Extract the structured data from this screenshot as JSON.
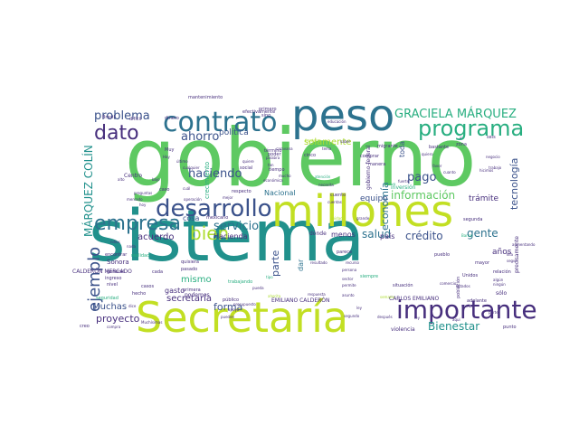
{
  "palette": {
    "background": "#ffffff",
    "dark_purple": "#472f7d",
    "blue": "#3b528b",
    "teal_blue": "#2c728e",
    "teal": "#21918c",
    "sea_green": "#28ae80",
    "green": "#5ec962",
    "light_green": "#addc30",
    "yellow_green": "#c2df23"
  },
  "words": [
    {
      "text": "gobierno",
      "size": 88,
      "rotate": 0,
      "color": "#5ec962"
    },
    {
      "text": "sistema",
      "size": 78,
      "rotate": 0,
      "color": "#21918c"
    },
    {
      "text": "Secretaría",
      "size": 46,
      "rotate": 0,
      "color": "#c2df23"
    },
    {
      "text": "peso",
      "size": 48,
      "rotate": 0,
      "color": "#2c728e"
    },
    {
      "text": "millones",
      "size": 48,
      "rotate": 0,
      "color": "#c2df23"
    },
    {
      "text": "contrato",
      "size": 30,
      "rotate": 0,
      "color": "#2c728e"
    },
    {
      "text": "desarrollo",
      "size": 26,
      "rotate": 0,
      "color": "#3b528b"
    },
    {
      "text": "importante",
      "size": 28,
      "rotate": 0,
      "color": "#472f7d"
    },
    {
      "text": "programa",
      "size": 24,
      "rotate": 0,
      "color": "#28ae80"
    },
    {
      "text": "empresa",
      "size": 22,
      "rotate": 0,
      "color": "#2c728e"
    },
    {
      "text": "dato",
      "size": 22,
      "rotate": 0,
      "color": "#472f7d"
    },
    {
      "text": "bien",
      "size": 20,
      "rotate": 0,
      "color": "#addc30"
    },
    {
      "text": "ejemplo",
      "size": 18,
      "rotate": 270,
      "color": "#3b528b"
    },
    {
      "text": "GRACIELA MÁRQUEZ",
      "size": 13,
      "rotate": 0,
      "color": "#28ae80"
    },
    {
      "text": "MÁRQUEZ COLÍN",
      "size": 12,
      "rotate": 270,
      "color": "#21918c"
    },
    {
      "text": "problema",
      "size": 13,
      "rotate": 0,
      "color": "#3b528b"
    },
    {
      "text": "ahorro",
      "size": 13,
      "rotate": 0,
      "color": "#3b528b"
    },
    {
      "text": "haciendo",
      "size": 13,
      "rotate": 0,
      "color": "#3b528b"
    },
    {
      "text": "servicio",
      "size": 13,
      "rotate": 0,
      "color": "#2c728e"
    },
    {
      "text": "pago",
      "size": 13,
      "rotate": 0,
      "color": "#3b528b"
    },
    {
      "text": "información",
      "size": 12,
      "rotate": 0,
      "color": "#5ec962"
    },
    {
      "text": "crédito",
      "size": 12,
      "rotate": 0,
      "color": "#3b528b"
    },
    {
      "text": "salud",
      "size": 12,
      "rotate": 0,
      "color": "#2c728e"
    },
    {
      "text": "gente",
      "size": 12,
      "rotate": 0,
      "color": "#2c728e"
    },
    {
      "text": "Bienestar",
      "size": 12,
      "rotate": 0,
      "color": "#21918c"
    },
    {
      "text": "forma",
      "size": 11,
      "rotate": 0,
      "color": "#3b528b"
    },
    {
      "text": "proyecto",
      "size": 11,
      "rotate": 0,
      "color": "#472f7d"
    },
    {
      "text": "Muchas",
      "size": 10,
      "rotate": 0,
      "color": "#3b528b"
    },
    {
      "text": "secretaría",
      "size": 10,
      "rotate": 0,
      "color": "#472f7d"
    },
    {
      "text": "acuerdo",
      "size": 10,
      "rotate": 0,
      "color": "#472f7d"
    },
    {
      "text": "mismo",
      "size": 10,
      "rotate": 0,
      "color": "#28ae80"
    },
    {
      "text": "economía",
      "size": 11,
      "rotate": 270,
      "color": "#2c728e"
    },
    {
      "text": "tecnología",
      "size": 11,
      "rotate": 270,
      "color": "#3b528b"
    },
    {
      "text": "parte",
      "size": 11,
      "rotate": 270,
      "color": "#3b528b"
    },
    {
      "text": "solamente",
      "size": 10,
      "rotate": 0,
      "color": "#addc30"
    },
    {
      "text": "política",
      "size": 9,
      "rotate": 0,
      "color": "#3b528b"
    },
    {
      "text": "equipo",
      "size": 9,
      "rotate": 0,
      "color": "#3b528b"
    },
    {
      "text": "trámite",
      "size": 9,
      "rotate": 0,
      "color": "#472f7d"
    },
    {
      "text": "años",
      "size": 9,
      "rotate": 0,
      "color": "#472f7d"
    },
    {
      "text": "Hacienda",
      "size": 8,
      "rotate": 0,
      "color": "#472f7d"
    },
    {
      "text": "Nacional",
      "size": 8,
      "rotate": 0,
      "color": "#2c728e"
    },
    {
      "text": "cosa",
      "size": 8,
      "rotate": 0,
      "color": "#3b528b"
    },
    {
      "text": "gasto",
      "size": 8,
      "rotate": 0,
      "color": "#472f7d"
    },
    {
      "text": "menos",
      "size": 8,
      "rotate": 0,
      "color": "#472f7d"
    },
    {
      "text": "dar",
      "size": 8,
      "rotate": 270,
      "color": "#2c728e"
    },
    {
      "text": "país",
      "size": 8,
      "rotate": 0,
      "color": "#472f7d"
    },
    {
      "text": "toda",
      "size": 8,
      "rotate": 270,
      "color": "#3b528b"
    },
    {
      "text": "crecimiento",
      "size": 7,
      "rotate": 270,
      "color": "#28ae80"
    },
    {
      "text": "Sonora",
      "size": 7,
      "rotate": 0,
      "color": "#472f7d"
    },
    {
      "text": "CALDERÓN MERCADO",
      "size": 6,
      "rotate": 0,
      "color": "#472f7d"
    },
    {
      "text": "EMILIANO CALDERÓN",
      "size": 6,
      "rotate": 0,
      "color": "#472f7d"
    },
    {
      "text": "CARLOS EMILIANO",
      "size": 6,
      "rotate": 0,
      "color": "#472f7d"
    },
    {
      "text": "podemos",
      "size": 6,
      "rotate": 0,
      "color": "#472f7d"
    },
    {
      "text": "violencia",
      "size": 6,
      "rotate": 0,
      "color": "#472f7d"
    },
    {
      "text": "precisamente",
      "size": 6,
      "rotate": 270,
      "color": "#472f7d"
    },
    {
      "text": "Centro",
      "size": 6,
      "rotate": 0,
      "color": "#472f7d"
    },
    {
      "text": "dónde",
      "size": 6,
      "rotate": 0,
      "color": "#472f7d"
    },
    {
      "text": "gobierno federal",
      "size": 6,
      "rotate": 270,
      "color": "#472f7d"
    },
    {
      "text": "inversión",
      "size": 6,
      "rotate": 0,
      "color": "#28ae80"
    },
    {
      "text": "sólo",
      "size": 6,
      "rotate": 0,
      "color": "#472f7d"
    },
    {
      "text": "punto",
      "size": 5,
      "rotate": 0,
      "color": "#472f7d"
    },
    {
      "text": "hecho",
      "size": 5,
      "rotate": 0,
      "color": "#472f7d"
    },
    {
      "text": "caso",
      "size": 5,
      "rotate": 0,
      "color": "#472f7d"
    },
    {
      "text": "pasado",
      "size": 5,
      "rotate": 0,
      "color": "#472f7d"
    },
    {
      "text": "quisiera",
      "size": 5,
      "rotate": 0,
      "color": "#472f7d"
    },
    {
      "text": "ingreso",
      "size": 5,
      "rotate": 0,
      "color": "#472f7d"
    },
    {
      "text": "nivel",
      "size": 5,
      "rotate": 0,
      "color": "#472f7d"
    },
    {
      "text": "creo",
      "size": 5,
      "rotate": 0,
      "color": "#472f7d"
    },
    {
      "text": "cada",
      "size": 5,
      "rotate": 0,
      "color": "#472f7d"
    },
    {
      "text": "primera",
      "size": 5,
      "rotate": 0,
      "color": "#472f7d"
    },
    {
      "text": "mexicano",
      "size": 5,
      "rotate": 0,
      "color": "#472f7d"
    },
    {
      "text": "casos",
      "size": 5,
      "rotate": 0,
      "color": "#472f7d"
    },
    {
      "text": "trabajando",
      "size": 5,
      "rotate": 0,
      "color": "#28ae80"
    },
    {
      "text": "público",
      "size": 5,
      "rotate": 0,
      "color": "#472f7d"
    },
    {
      "text": "siempre",
      "size": 5,
      "rotate": 0,
      "color": "#28ae80"
    },
    {
      "text": "Unidos",
      "size": 5,
      "rotate": 0,
      "color": "#472f7d"
    },
    {
      "text": "situación",
      "size": 5,
      "rotate": 0,
      "color": "#472f7d"
    },
    {
      "text": "pueblo",
      "size": 5,
      "rotate": 0,
      "color": "#472f7d"
    },
    {
      "text": "adelante",
      "size": 5,
      "rotate": 0,
      "color": "#472f7d"
    },
    {
      "text": "población",
      "size": 5,
      "rotate": 270,
      "color": "#472f7d"
    },
    {
      "text": "efectivamente",
      "size": 5,
      "rotate": 0,
      "color": "#472f7d"
    },
    {
      "text": "mantenimiento",
      "size": 5,
      "rotate": 0,
      "color": "#472f7d"
    },
    {
      "text": "difícil",
      "size": 5,
      "rotate": 0,
      "color": "#472f7d"
    },
    {
      "text": "dinero",
      "size": 5,
      "rotate": 0,
      "color": "#472f7d"
    },
    {
      "text": "Brasil",
      "size": 5,
      "rotate": 0,
      "color": "#472f7d"
    },
    {
      "text": "sino",
      "size": 5,
      "rotate": 0,
      "color": "#472f7d"
    },
    {
      "text": "primero",
      "size": 5,
      "rotate": 0,
      "color": "#472f7d"
    },
    {
      "text": "cinco",
      "size": 5,
      "rotate": 0,
      "color": "#472f7d"
    },
    {
      "text": "manera",
      "size": 5,
      "rotate": 0,
      "color": "#472f7d"
    },
    {
      "text": "comprar",
      "size": 5,
      "rotate": 0,
      "color": "#472f7d"
    },
    {
      "text": "migrante",
      "size": 5,
      "rotate": 0,
      "color": "#472f7d"
    },
    {
      "text": "bastante",
      "size": 5,
      "rotate": 0,
      "color": "#472f7d"
    },
    {
      "text": "zona",
      "size": 5,
      "rotate": 0,
      "color": "#472f7d"
    },
    {
      "text": "seis",
      "size": 5,
      "rotate": 0,
      "color": "#472f7d"
    },
    {
      "text": "Muy",
      "size": 5,
      "rotate": 0,
      "color": "#472f7d"
    },
    {
      "text": "respecto",
      "size": 5,
      "rotate": 0,
      "color": "#472f7d"
    },
    {
      "text": "social",
      "size": 5,
      "rotate": 0,
      "color": "#472f7d"
    },
    {
      "text": "tiempo",
      "size": 5,
      "rotate": 0,
      "color": "#472f7d"
    },
    {
      "text": "poder",
      "size": 5,
      "rotate": 0,
      "color": "#472f7d"
    },
    {
      "text": "término",
      "size": 5,
      "rotate": 0,
      "color": "#472f7d"
    },
    {
      "text": "encontrar",
      "size": 5,
      "rotate": 0,
      "color": "#472f7d"
    },
    {
      "text": "general",
      "size": 5,
      "rotate": 0,
      "color": "#472f7d"
    },
    {
      "text": "realidad",
      "size": 5,
      "rotate": 0,
      "color": "#28ae80"
    },
    {
      "text": "seguridad",
      "size": 5,
      "rotate": 0,
      "color": "#28ae80"
    },
    {
      "text": "cuento",
      "size": 5,
      "rotate": 0,
      "color": "#472f7d"
    },
    {
      "text": "parece",
      "size": 5,
      "rotate": 0,
      "color": "#472f7d"
    },
    {
      "text": "segunda",
      "size": 5,
      "rotate": 0,
      "color": "#472f7d"
    },
    {
      "text": "relación",
      "size": 5,
      "rotate": 0,
      "color": "#472f7d"
    },
    {
      "text": "mayor",
      "size": 5,
      "rotate": 0,
      "color": "#472f7d"
    },
    {
      "text": "Banco",
      "size": 4,
      "rotate": 0,
      "color": "#28ae80"
    },
    {
      "text": "segundo",
      "size": 4,
      "rotate": 0,
      "color": "#472f7d"
    },
    {
      "text": "después",
      "size": 4,
      "rotate": 0,
      "color": "#472f7d"
    },
    {
      "text": "nuevo",
      "size": 4,
      "rotate": 0,
      "color": "#28ae80"
    },
    {
      "text": "saber",
      "size": 4,
      "rotate": 0,
      "color": "#472f7d"
    },
    {
      "text": "permite",
      "size": 4,
      "rotate": 0,
      "color": "#472f7d"
    },
    {
      "text": "comercio",
      "size": 4,
      "rotate": 0,
      "color": "#472f7d"
    },
    {
      "text": "ley",
      "size": 4,
      "rotate": 0,
      "color": "#472f7d"
    },
    {
      "text": "persona",
      "size": 4,
      "rotate": 0,
      "color": "#472f7d"
    },
    {
      "text": "resultado",
      "size": 4,
      "rotate": 0,
      "color": "#472f7d"
    },
    {
      "text": "recurso",
      "size": 4,
      "rotate": 0,
      "color": "#472f7d"
    },
    {
      "text": "asunto",
      "size": 4,
      "rotate": 0,
      "color": "#472f7d"
    },
    {
      "text": "presupuesto",
      "size": 4,
      "rotate": 0,
      "color": "#472f7d"
    },
    {
      "text": "grande",
      "size": 4,
      "rotate": 0,
      "color": "#472f7d"
    },
    {
      "text": "unidad",
      "size": 4,
      "rotate": 0,
      "color": "#addc30"
    },
    {
      "text": "tema",
      "size": 4,
      "rotate": 0,
      "color": "#472f7d"
    },
    {
      "text": "mejor",
      "size": 4,
      "rotate": 0,
      "color": "#472f7d"
    },
    {
      "text": "quiere",
      "size": 4,
      "rotate": 0,
      "color": "#472f7d"
    },
    {
      "text": "pueda",
      "size": 4,
      "rotate": 0,
      "color": "#472f7d"
    },
    {
      "text": "tipo",
      "size": 4,
      "rotate": 0,
      "color": "#28ae80"
    },
    {
      "text": "Muchísimas",
      "size": 4,
      "rotate": 0,
      "color": "#472f7d"
    },
    {
      "text": "económica",
      "size": 4,
      "rotate": 0,
      "color": "#472f7d"
    },
    {
      "text": "educación",
      "size": 4,
      "rotate": 0,
      "color": "#472f7d"
    },
    {
      "text": "negocio",
      "size": 4,
      "rotate": 0,
      "color": "#472f7d"
    },
    {
      "text": "trabajo",
      "size": 4,
      "rotate": 0,
      "color": "#472f7d"
    },
    {
      "text": "fuerte",
      "size": 4,
      "rotate": 0,
      "color": "#472f7d"
    },
    {
      "text": "Hay",
      "size": 4,
      "rotate": 0,
      "color": "#472f7d"
    },
    {
      "text": "cualquier",
      "size": 4,
      "rotate": 0,
      "color": "#472f7d"
    },
    {
      "text": "caravana",
      "size": 4,
      "rotate": 0,
      "color": "#472f7d"
    },
    {
      "text": "último",
      "size": 4,
      "rotate": 0,
      "color": "#472f7d"
    },
    {
      "text": "mercado",
      "size": 4,
      "rotate": 0,
      "color": "#472f7d"
    },
    {
      "text": "preguntas",
      "size": 4,
      "rotate": 0,
      "color": "#472f7d"
    },
    {
      "text": "operación",
      "size": 4,
      "rotate": 0,
      "color": "#472f7d"
    },
    {
      "text": "atención",
      "size": 4,
      "rotate": 0,
      "color": "#28ae80"
    },
    {
      "text": "necesita",
      "size": 4,
      "rotate": 0,
      "color": "#472f7d"
    },
    {
      "text": "frontera",
      "size": 4,
      "rotate": 0,
      "color": "#addc30"
    },
    {
      "text": "cuál",
      "size": 4,
      "rotate": 0,
      "color": "#472f7d"
    },
    {
      "text": "algún",
      "size": 4,
      "rotate": 0,
      "color": "#472f7d"
    },
    {
      "text": "ningún",
      "size": 4,
      "rotate": 0,
      "color": "#472f7d"
    },
    {
      "text": "lilia",
      "size": 4,
      "rotate": 0,
      "color": "#472f7d"
    },
    {
      "text": "seguir",
      "size": 4,
      "rotate": 0,
      "color": "#472f7d"
    },
    {
      "text": "hicimos",
      "size": 4,
      "rotate": 0,
      "color": "#472f7d"
    },
    {
      "text": "aumentando",
      "size": 4,
      "rotate": 0,
      "color": "#472f7d"
    },
    {
      "text": "cuanto",
      "size": 4,
      "rotate": 0,
      "color": "#472f7d"
    },
    {
      "text": "favor",
      "size": 4,
      "rotate": 0,
      "color": "#472f7d"
    },
    {
      "text": "quiero",
      "size": 4,
      "rotate": 0,
      "color": "#472f7d"
    },
    {
      "text": "Estados",
      "size": 4,
      "rotate": 0,
      "color": "#472f7d"
    },
    {
      "text": "niños",
      "size": 4,
      "rotate": 0,
      "color": "#472f7d"
    },
    {
      "text": "nada",
      "size": 4,
      "rotate": 0,
      "color": "#472f7d"
    },
    {
      "text": "palabra",
      "size": 4,
      "rotate": 0,
      "color": "#472f7d"
    },
    {
      "text": "tan",
      "size": 4,
      "rotate": 0,
      "color": "#472f7d"
    },
    {
      "text": "mucho",
      "size": 4,
      "rotate": 0,
      "color": "#472f7d"
    },
    {
      "text": "ahorita",
      "size": 4,
      "rotate": 0,
      "color": "#addc30"
    },
    {
      "text": "pueden",
      "size": 4,
      "rotate": 0,
      "color": "#472f7d"
    },
    {
      "text": "apoyo",
      "size": 4,
      "rotate": 0,
      "color": "#472f7d"
    },
    {
      "text": "compra",
      "size": 4,
      "rotate": 0,
      "color": "#472f7d"
    },
    {
      "text": "dice",
      "size": 4,
      "rotate": 0,
      "color": "#472f7d"
    },
    {
      "text": "respuesta",
      "size": 4,
      "rotate": 0,
      "color": "#472f7d"
    },
    {
      "text": "cuentas",
      "size": 4,
      "rotate": 0,
      "color": "#472f7d"
    },
    {
      "text": "semana",
      "size": 4,
      "rotate": 0,
      "color": "#addc30"
    },
    {
      "text": "parte",
      "size": 4,
      "rotate": 0,
      "color": "#472f7d"
    },
    {
      "text": "aquí",
      "size": 4,
      "rotate": 0,
      "color": "#472f7d"
    },
    {
      "text": "ir",
      "size": 4,
      "rotate": 0,
      "color": "#472f7d"
    },
    {
      "text": "ley",
      "size": 4,
      "rotate": 0,
      "color": "#472f7d"
    },
    {
      "text": "alto",
      "size": 4,
      "rotate": 0,
      "color": "#472f7d"
    },
    {
      "text": "bajo",
      "size": 4,
      "rotate": 0,
      "color": "#472f7d"
    },
    {
      "text": "sector",
      "size": 4,
      "rotate": 0,
      "color": "#472f7d"
    },
    {
      "text": "vamos",
      "size": 4,
      "rotate": 0,
      "color": "#472f7d"
    },
    {
      "text": "hoy",
      "size": 4,
      "rotate": 0,
      "color": "#472f7d"
    }
  ]
}
